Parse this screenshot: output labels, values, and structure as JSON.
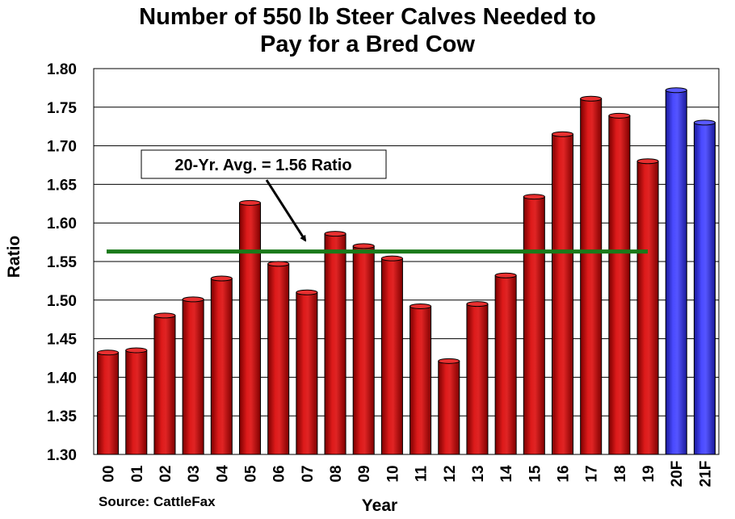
{
  "chart_data": {
    "type": "bar",
    "title_line1": "Number of 550 lb Steer Calves Needed to",
    "title_line2": "Pay for a Bred Cow",
    "xlabel": "Year",
    "ylabel": "Ratio",
    "ylim": [
      1.3,
      1.8
    ],
    "yticks": [
      "1.30",
      "1.35",
      "1.40",
      "1.45",
      "1.50",
      "1.55",
      "1.60",
      "1.65",
      "1.70",
      "1.75",
      "1.80"
    ],
    "categories": [
      "00",
      "01",
      "02",
      "03",
      "04",
      "05",
      "06",
      "07",
      "08",
      "09",
      "10",
      "11",
      "12",
      "13",
      "14",
      "15",
      "16",
      "17",
      "18",
      "19",
      "20F",
      "21F"
    ],
    "values": [
      1.432,
      1.435,
      1.48,
      1.501,
      1.528,
      1.626,
      1.547,
      1.51,
      1.586,
      1.57,
      1.554,
      1.492,
      1.421,
      1.495,
      1.532,
      1.634,
      1.715,
      1.761,
      1.739,
      1.68,
      1.772,
      1.73
    ],
    "forecast": [
      false,
      false,
      false,
      false,
      false,
      false,
      false,
      false,
      false,
      false,
      false,
      false,
      false,
      false,
      false,
      false,
      false,
      false,
      false,
      false,
      true,
      true
    ],
    "colors": {
      "actual": "#cc0000",
      "forecast": "#3333ee",
      "average_line": "#1a7a1a"
    },
    "average": {
      "value": 1.563,
      "label": "20-Yr. Avg. = 1.56 Ratio"
    },
    "grid": true,
    "source": "Source: CattleFax"
  }
}
